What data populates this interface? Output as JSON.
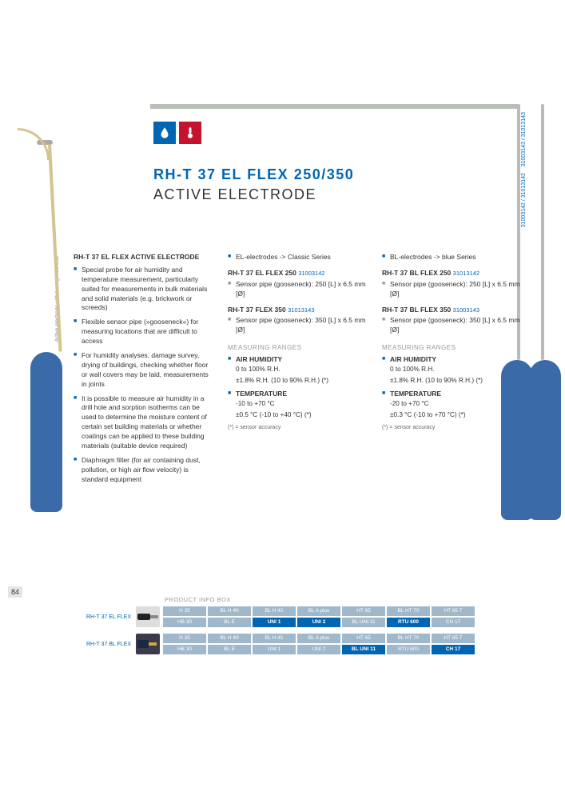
{
  "header": {
    "title": "RH-T 37 EL FLEX 250/350",
    "subtitle": "ACTIVE ELECTRODE"
  },
  "side_codes": [
    "31003142 / 31013142",
    "31003143 / 31013143"
  ],
  "side_label": "Active electrode with bent gooseneck",
  "page_number": "84",
  "col1": {
    "title": "RH-T 37 EL FLEX ACTIVE ELECTRODE",
    "bullets": [
      "Special probe for air humidity and temperature measurement, particularly suited for measurements in bulk materials and solid materials (e.g. brickwork or screeds)",
      "Flexible sensor pipe (»gooseneck«) for measuring locations that are difficult to access",
      "For humidity analyses, damage survey, drying of buildings, checking whether floor or wall covers may be laid, measurements in joints",
      "It is possible to measure air humidity in a drill hole and sorption isotherms can be used to determine the moisture content of certain set building materials or whether coatings can be applied to these building materials (suitable device required)",
      "Diaphragm filter (for air containing dust, pollution, or high air flow velocity) is standard equipment"
    ]
  },
  "col2": {
    "lead": "EL-electrodes -> Classic Series",
    "p250_title": "RH-T 37 EL FLEX 250",
    "p250_code": "31003142",
    "p250_spec": "Sensor pipe (gooseneck): 250 [L] x 6.5 mm [Ø]",
    "p350_title": "RH-T 37 FLEX 350",
    "p350_code": "31013143",
    "p350_spec": "Sensor pipe (gooseneck): 350 [L] x 6.5 mm [Ø]",
    "ranges_label": "MEASURING RANGES",
    "humidity_title": "AIR HUMIDITY",
    "humidity_l1": "0 to 100% R.H.",
    "humidity_l2": "±1.8% R.H. (10 to 90% R.H.) (*)",
    "temp_title": "TEMPERATURE",
    "temp_l1": "-10 to +70 °C",
    "temp_l2": "±0.5 °C (-10 to +40 °C) (*)",
    "footnote": "(*) = sensor accuracy"
  },
  "col3": {
    "lead": "BL-electrodes -> blue Series",
    "p250_title": "RH-T 37 BL FLEX 250",
    "p250_code": "31013142",
    "p250_spec": "Sensor pipe (gooseneck): 250 [L] x 6.5 mm [Ø]",
    "p350_title": "RH-T 37 BL FLEX 350",
    "p350_code": "31003143",
    "p350_spec": "Sensor pipe (gooseneck): 350 [L] x 6.5 mm [Ø]",
    "ranges_label": "MEASURING RANGES",
    "humidity_title": "AIR HUMIDITY",
    "humidity_l1": "0 to 100% R.H.",
    "humidity_l2": "±1.8% R.H. (10 to 90% R.H.) (*)",
    "temp_title": "TEMPERATURE",
    "temp_l1": "-20 to +70 °C",
    "temp_l2": "±0.3 °C (-10 to +70 °C) (*)",
    "footnote": "(*) = sensor accuracy"
  },
  "info": {
    "title": "PRODUCT INFO BOX",
    "row1_label": "RH-T 37 EL FLEX",
    "row2_label": "RH-T 37 BL FLEX",
    "row1_a": [
      "H 35",
      "BL H 40",
      "BL H 41",
      "BL A plus",
      "HT 65",
      "BL HT 70",
      "HT 85 T"
    ],
    "row1_b": [
      "HB 30",
      "BL E",
      "UNI 1",
      "UNI 2",
      "BL UNI 11",
      "RTU 600",
      "CH 17"
    ],
    "row1_b_bold": [
      false,
      false,
      true,
      true,
      false,
      true,
      false
    ],
    "row2_a": [
      "H 35",
      "BL H 40",
      "BL H 41",
      "BL A plus",
      "HT 65",
      "BL HT 70",
      "HT 85 T"
    ],
    "row2_b": [
      "HB 30",
      "BL E",
      "UNI 1",
      "UNI 2",
      "BL UNI 11",
      "RTU 600",
      "CH 17"
    ],
    "row2_b_bold": [
      false,
      false,
      false,
      false,
      true,
      false,
      true
    ]
  }
}
